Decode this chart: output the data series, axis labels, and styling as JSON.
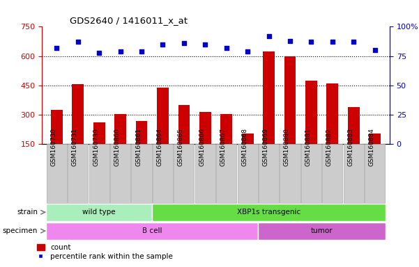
{
  "title": "GDS2640 / 1416011_x_at",
  "samples": [
    "GSM160730",
    "GSM160731",
    "GSM160739",
    "GSM160860",
    "GSM160861",
    "GSM160864",
    "GSM160865",
    "GSM160866",
    "GSM160867",
    "GSM160868",
    "GSM160869",
    "GSM160880",
    "GSM160881",
    "GSM160882",
    "GSM160883",
    "GSM160884"
  ],
  "counts": [
    325,
    455,
    262,
    305,
    268,
    440,
    350,
    315,
    305,
    205,
    625,
    600,
    475,
    460,
    340,
    205
  ],
  "percentiles": [
    82,
    87,
    78,
    79,
    79,
    85,
    86,
    85,
    82,
    79,
    92,
    88,
    87,
    87,
    87,
    80
  ],
  "bar_color": "#cc0000",
  "dot_color": "#0000cc",
  "ylim_left": [
    150,
    750
  ],
  "ylim_right": [
    0,
    100
  ],
  "yticks_left": [
    150,
    300,
    450,
    600,
    750
  ],
  "yticks_right": [
    0,
    25,
    50,
    75,
    100
  ],
  "ytick_right_labels": [
    "0",
    "25",
    "50",
    "75",
    "100%"
  ],
  "grid_values": [
    300,
    450,
    600
  ],
  "strain_groups": [
    {
      "label": "wild type",
      "start": 0,
      "end": 4,
      "color": "#aaeebb"
    },
    {
      "label": "XBP1s transgenic",
      "start": 5,
      "end": 15,
      "color": "#66dd44"
    }
  ],
  "specimen_groups": [
    {
      "label": "B cell",
      "start": 0,
      "end": 9,
      "color": "#ee88ee"
    },
    {
      "label": "tumor",
      "start": 10,
      "end": 15,
      "color": "#cc66cc"
    }
  ],
  "strain_label": "strain",
  "specimen_label": "specimen",
  "legend_count": "count",
  "legend_percentile": "percentile rank within the sample",
  "tick_box_color": "#cccccc",
  "tick_box_edge": "#aaaaaa"
}
